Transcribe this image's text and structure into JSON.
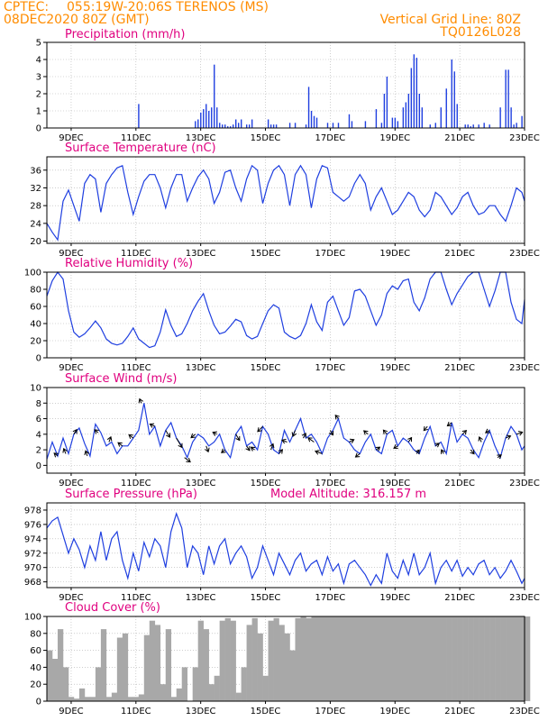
{
  "header": {
    "source": "CPTEC:",
    "location": "055:19W-20:06S   TERENOS (MS)",
    "datetime": "08DEC2020 80Z (GMT)",
    "grid_line": "Vertical Grid Line: 80Z",
    "code": "TQ0126L028"
  },
  "x_axis": {
    "tick_labels": [
      "9DEC",
      "11DEC",
      "13DEC",
      "15DEC",
      "17DEC",
      "19DEC",
      "21DEC",
      "23DEC"
    ]
  },
  "colors": {
    "line": "#1f3fe0",
    "cloud": "#a8a8a8",
    "arrow": "#000000"
  },
  "chart_data": [
    {
      "id": "precip",
      "type": "bar",
      "title": "Precipitation (mm/h)",
      "xlim": [
        0,
        177
      ],
      "ylim": [
        0,
        5
      ],
      "yticks": [
        0,
        1,
        2,
        3,
        4,
        5
      ],
      "x_day_ticks": [
        9,
        33,
        57,
        81,
        105,
        129,
        153,
        177
      ],
      "x": [
        34,
        55,
        56,
        57,
        58,
        59,
        60,
        61,
        62,
        63,
        64,
        65,
        66,
        67,
        68,
        69,
        70,
        71,
        72,
        74,
        75,
        76,
        82,
        83,
        84,
        85,
        90,
        92,
        96,
        97,
        98,
        99,
        100,
        104,
        106,
        108,
        112,
        113,
        118,
        122,
        124,
        125,
        126,
        128,
        129,
        130,
        132,
        133,
        134,
        135,
        136,
        137,
        138,
        139,
        142,
        144,
        146,
        148,
        150,
        151,
        152,
        155,
        156,
        157,
        158,
        160,
        162,
        164,
        168,
        170,
        171,
        172,
        173,
        174,
        176
      ],
      "values": [
        1.4,
        0.4,
        0.5,
        0.9,
        1.1,
        1.4,
        1.0,
        1.2,
        3.7,
        1.2,
        0.3,
        0.2,
        0.2,
        0.1,
        0.1,
        0.2,
        0.5,
        0.3,
        0.5,
        0.2,
        0.2,
        0.5,
        0.5,
        0.2,
        0.2,
        0.2,
        0.3,
        0.3,
        0.2,
        2.4,
        1.0,
        0.7,
        0.6,
        0.3,
        0.3,
        0.3,
        0.8,
        0.4,
        0.4,
        1.1,
        0.3,
        2.0,
        3.0,
        0.6,
        0.6,
        0.4,
        1.2,
        1.5,
        2.0,
        3.5,
        4.3,
        4.1,
        2.0,
        1.2,
        0.2,
        0.3,
        1.2,
        2.3,
        4.0,
        3.3,
        1.4,
        0.2,
        0.2,
        0.1,
        0.2,
        0.2,
        0.3,
        0.2,
        1.2,
        3.4,
        3.4,
        1.2,
        0.2,
        0.3,
        0.7
      ]
    },
    {
      "id": "temp",
      "type": "line",
      "title": "Surface Temperature (nC)",
      "xlim": [
        0,
        177
      ],
      "ylim": [
        19.5,
        39
      ],
      "yticks": [
        20,
        24,
        28,
        32,
        36
      ],
      "x_day_ticks": [
        9,
        33,
        57,
        81,
        105,
        129,
        153,
        177
      ],
      "x": [
        0,
        2,
        4,
        6,
        8,
        10,
        12,
        14,
        16,
        18,
        20,
        22,
        24,
        26,
        28,
        30,
        32,
        34,
        36,
        38,
        40,
        42,
        44,
        46,
        48,
        50,
        52,
        54,
        56,
        58,
        60,
        62,
        64,
        66,
        68,
        70,
        72,
        74,
        76,
        78,
        80,
        82,
        84,
        86,
        88,
        90,
        92,
        94,
        96,
        98,
        100,
        102,
        104,
        106,
        108,
        110,
        112,
        114,
        116,
        118,
        120,
        122,
        124,
        126,
        128,
        130,
        132,
        134,
        136,
        138,
        140,
        142,
        144,
        146,
        148,
        150,
        152,
        154,
        156,
        158,
        160,
        162,
        164,
        166,
        168,
        170,
        172,
        174,
        176,
        177
      ],
      "values": [
        24,
        22,
        20.3,
        29,
        31.5,
        28,
        24.5,
        33,
        35,
        34,
        26.5,
        33,
        35,
        36.5,
        37,
        31,
        26,
        30,
        33.5,
        35,
        35,
        32,
        27.5,
        32,
        35,
        35,
        29,
        32,
        34.5,
        36,
        34,
        28.5,
        31,
        35.5,
        36,
        32,
        29,
        34,
        37,
        36,
        28.5,
        33,
        36,
        37,
        35,
        28,
        35,
        37,
        35,
        27.5,
        34,
        37,
        36.5,
        31,
        30,
        29,
        30,
        33,
        35,
        33,
        27,
        30,
        32,
        29,
        26,
        27,
        29,
        31,
        30,
        27,
        25.5,
        27,
        31,
        30,
        28,
        26,
        27.5,
        30,
        31,
        28,
        26,
        26.5,
        28,
        28,
        26,
        24.5,
        28,
        32,
        31,
        29
      ]
    },
    {
      "id": "rh",
      "type": "line",
      "title": "Relative Humidity (%)",
      "xlim": [
        0,
        177
      ],
      "ylim": [
        0,
        100
      ],
      "yticks": [
        0,
        20,
        40,
        60,
        80,
        100
      ],
      "x_day_ticks": [
        9,
        33,
        57,
        81,
        105,
        129,
        153,
        177
      ],
      "x": [
        0,
        2,
        4,
        6,
        8,
        10,
        12,
        14,
        16,
        18,
        20,
        22,
        24,
        26,
        28,
        30,
        32,
        34,
        36,
        38,
        40,
        42,
        44,
        46,
        48,
        50,
        52,
        54,
        56,
        58,
        60,
        62,
        64,
        66,
        68,
        70,
        72,
        74,
        76,
        78,
        80,
        82,
        84,
        86,
        88,
        90,
        92,
        94,
        96,
        98,
        100,
        102,
        104,
        106,
        108,
        110,
        112,
        114,
        116,
        118,
        120,
        122,
        124,
        126,
        128,
        130,
        132,
        134,
        136,
        138,
        140,
        142,
        144,
        146,
        148,
        150,
        152,
        154,
        156,
        158,
        160,
        162,
        164,
        166,
        168,
        170,
        172,
        174,
        176,
        177
      ],
      "values": [
        72,
        90,
        100,
        92,
        55,
        30,
        24,
        28,
        35,
        43,
        35,
        22,
        17,
        15,
        17,
        25,
        35,
        22,
        17,
        12,
        14,
        30,
        56,
        38,
        25,
        28,
        40,
        55,
        66,
        75,
        55,
        38,
        28,
        30,
        37,
        45,
        42,
        26,
        22,
        25,
        40,
        55,
        62,
        58,
        30,
        25,
        22,
        26,
        40,
        62,
        42,
        32,
        65,
        72,
        55,
        38,
        47,
        78,
        80,
        72,
        55,
        38,
        50,
        75,
        84,
        80,
        90,
        92,
        65,
        55,
        70,
        92,
        100,
        100,
        80,
        62,
        75,
        85,
        95,
        100,
        100,
        80,
        60,
        78,
        100,
        100,
        65,
        45,
        40,
        68
      ]
    },
    {
      "id": "wind",
      "type": "line",
      "title": "Surface Wind (m/s)",
      "xlim": [
        0,
        177
      ],
      "ylim": [
        -1,
        10
      ],
      "yticks": [
        0,
        2,
        4,
        6,
        8,
        10
      ],
      "x_day_ticks": [
        9,
        33,
        57,
        81,
        105,
        129,
        153,
        177
      ],
      "x": [
        0,
        2,
        4,
        6,
        8,
        10,
        12,
        14,
        16,
        18,
        20,
        22,
        24,
        26,
        28,
        30,
        32,
        34,
        36,
        38,
        40,
        42,
        44,
        46,
        48,
        50,
        52,
        54,
        56,
        58,
        60,
        62,
        64,
        66,
        68,
        70,
        72,
        74,
        76,
        78,
        80,
        82,
        84,
        86,
        88,
        90,
        92,
        94,
        96,
        98,
        100,
        102,
        104,
        106,
        108,
        110,
        112,
        114,
        116,
        118,
        120,
        122,
        124,
        126,
        128,
        130,
        132,
        134,
        136,
        138,
        140,
        142,
        144,
        146,
        148,
        150,
        152,
        154,
        156,
        158,
        160,
        162,
        164,
        166,
        168,
        170,
        172,
        174,
        176,
        177
      ],
      "values": [
        0.8,
        3,
        1.2,
        3.5,
        1.5,
        4,
        4.8,
        2.8,
        1.2,
        5.3,
        4.2,
        2.5,
        3,
        1.5,
        2.5,
        2.5,
        3.5,
        4.5,
        8,
        4,
        5,
        2.5,
        4.5,
        5.5,
        3.5,
        2.5,
        1,
        3,
        4,
        3.5,
        2.5,
        3,
        4,
        2,
        1,
        4,
        5,
        2.5,
        3,
        2,
        5,
        4,
        2,
        1.5,
        4.5,
        3,
        4.5,
        6,
        3.5,
        4,
        3,
        1.5,
        3.5,
        4.5,
        6,
        3.5,
        3,
        2,
        1.5,
        3,
        4,
        2,
        1.5,
        4,
        4.5,
        2.5,
        3.5,
        3,
        2,
        1.5,
        3.5,
        5,
        2.5,
        3,
        1.5,
        5.5,
        3,
        4,
        3.5,
        2,
        1,
        3,
        4.5,
        2.5,
        1,
        3.5,
        5,
        4,
        2,
        2.5
      ],
      "arrows": {
        "x": [
          4,
          7,
          10,
          15,
          19,
          23,
          28,
          32,
          35,
          40,
          44,
          48,
          51,
          55,
          59,
          63,
          66,
          70,
          74,
          77,
          80,
          83,
          86,
          89,
          92,
          95,
          99,
          102,
          105,
          108,
          112,
          116,
          119,
          122,
          126,
          130,
          134,
          137,
          141,
          144,
          147,
          150,
          154,
          157,
          161,
          164,
          167,
          170,
          174
        ],
        "u": [
          -0.6,
          -0.2,
          0.5,
          -0.3,
          -0.6,
          0.3,
          -0.8,
          -0.5,
          -0.2,
          -0.6,
          0.5,
          0.6,
          0.8,
          -0.5,
          0.3,
          -0.8,
          -0.6,
          0.5,
          0.4,
          -0.7,
          -0.6,
          0.3,
          0.5,
          -0.8,
          -0.3,
          0.4,
          -0.7,
          -0.8,
          0.4,
          -0.5,
          0.8,
          -0.8,
          -0.6,
          0.7,
          -0.5,
          -0.8,
          0.4,
          0.5,
          -0.6,
          0.7,
          -0.4,
          -0.8,
          0.5,
          0.6,
          -0.3,
          -0.8,
          0.8,
          0.9,
          0.9
        ],
        "v": [
          0.5,
          0.5,
          0.8,
          0.9,
          0.5,
          0.8,
          0.6,
          0.4,
          0.5,
          0.3,
          -0.8,
          -1,
          -0.6,
          -0.4,
          -0.8,
          0.4,
          -0.5,
          -0.8,
          -0.6,
          0.5,
          -0.6,
          0.8,
          0.6,
          0.3,
          -0.8,
          0.8,
          0.5,
          0.3,
          -0.7,
          0.6,
          0.4,
          -0.6,
          0.5,
          0.5,
          0.6,
          -0.5,
          0.6,
          0.7,
          -0.7,
          0.5,
          0.7,
          -0.6,
          0.5,
          -0.7,
          0.7,
          -0.5,
          0.6,
          0.4,
          0.3
        ],
        "len": [
          5,
          6,
          6,
          6,
          5,
          6,
          6,
          6,
          5,
          6,
          9,
          12,
          8,
          6,
          7,
          5,
          5,
          8,
          6,
          5,
          8,
          7,
          6,
          6,
          7,
          6,
          8,
          8,
          6,
          5,
          6,
          6,
          6,
          5,
          6,
          5,
          6,
          5,
          6,
          5,
          5,
          6,
          6,
          6,
          6,
          5,
          5,
          6,
          7
        ]
      }
    },
    {
      "id": "pressure",
      "type": "line",
      "title": "Surface Pressure (hPa)",
      "annotation": "Model Altitude: 316.157  m",
      "xlim": [
        0,
        177
      ],
      "ylim": [
        967.2,
        979
      ],
      "yticks": [
        968,
        970,
        972,
        974,
        976,
        978
      ],
      "x_day_ticks": [
        9,
        33,
        57,
        81,
        105,
        129,
        153,
        177
      ],
      "x": [
        0,
        2,
        4,
        6,
        8,
        10,
        12,
        14,
        16,
        18,
        20,
        22,
        24,
        26,
        28,
        30,
        32,
        34,
        36,
        38,
        40,
        42,
        44,
        46,
        48,
        50,
        52,
        54,
        56,
        58,
        60,
        62,
        64,
        66,
        68,
        70,
        72,
        74,
        76,
        78,
        80,
        82,
        84,
        86,
        88,
        90,
        92,
        94,
        96,
        98,
        100,
        102,
        104,
        106,
        108,
        110,
        112,
        114,
        116,
        118,
        120,
        122,
        124,
        126,
        128,
        130,
        132,
        134,
        136,
        138,
        140,
        142,
        144,
        146,
        148,
        150,
        152,
        154,
        156,
        158,
        160,
        162,
        164,
        166,
        168,
        170,
        172,
        174,
        176,
        177
      ],
      "values": [
        975.5,
        976.5,
        977,
        974.5,
        972,
        974,
        972.5,
        970,
        973,
        971,
        975,
        971,
        974,
        975,
        971,
        968.5,
        972,
        969.5,
        973.5,
        971.5,
        974,
        973,
        970,
        975,
        977.5,
        975.5,
        970,
        973,
        972,
        969,
        973,
        970.5,
        973,
        974,
        970.5,
        972,
        973,
        971.5,
        968.5,
        970,
        973,
        971,
        969,
        972,
        970.5,
        969,
        971,
        972,
        969.5,
        970.5,
        971,
        969,
        971.5,
        969.5,
        970.5,
        967.8,
        970.5,
        971,
        970,
        969,
        967.5,
        969,
        967.8,
        972,
        969.5,
        968.5,
        971,
        969,
        972,
        969,
        970,
        972,
        967.8,
        970,
        971,
        969.5,
        971,
        968.8,
        970,
        969,
        970.5,
        971,
        969,
        970,
        968.5,
        969.5,
        971,
        969.5,
        967.8,
        968.5
      ]
    },
    {
      "id": "cloud",
      "type": "area",
      "title": "Cloud Cover (%)",
      "xlim": [
        0,
        177
      ],
      "ylim": [
        0,
        100
      ],
      "yticks": [
        0,
        20,
        40,
        60,
        80,
        100
      ],
      "x_day_ticks": [
        9,
        33,
        57,
        81,
        105,
        129,
        153,
        177
      ],
      "x": [
        0,
        2,
        4,
        6,
        8,
        10,
        12,
        14,
        16,
        18,
        20,
        22,
        24,
        26,
        28,
        30,
        32,
        34,
        36,
        38,
        40,
        42,
        44,
        46,
        48,
        50,
        52,
        54,
        56,
        58,
        60,
        62,
        64,
        66,
        68,
        70,
        72,
        74,
        76,
        78,
        80,
        82,
        84,
        86,
        88,
        90,
        92,
        94,
        96,
        98,
        100,
        102,
        104,
        106,
        108,
        110,
        112,
        114,
        116,
        118,
        120,
        122,
        124,
        126,
        128,
        130,
        132,
        134,
        136,
        138,
        140,
        142,
        144,
        146,
        148,
        150,
        152,
        154,
        156,
        158,
        160,
        162,
        164,
        166,
        168,
        170,
        172,
        174,
        176,
        177
      ],
      "values": [
        60,
        50,
        85,
        40,
        5,
        3,
        15,
        5,
        5,
        40,
        85,
        5,
        10,
        75,
        80,
        5,
        5,
        8,
        78,
        95,
        90,
        20,
        85,
        5,
        15,
        40,
        0,
        40,
        95,
        85,
        20,
        30,
        95,
        98,
        95,
        10,
        40,
        90,
        98,
        80,
        30,
        95,
        98,
        90,
        80,
        60,
        98,
        100,
        98,
        100,
        100,
        100,
        100,
        100,
        100,
        100,
        100,
        100,
        100,
        100,
        100,
        100,
        100,
        100,
        100,
        100,
        100,
        100,
        100,
        100,
        100,
        100,
        100,
        100,
        100,
        100,
        100,
        100,
        100,
        100,
        100,
        100,
        100,
        100,
        100,
        100,
        100,
        100,
        100,
        100
      ]
    }
  ]
}
